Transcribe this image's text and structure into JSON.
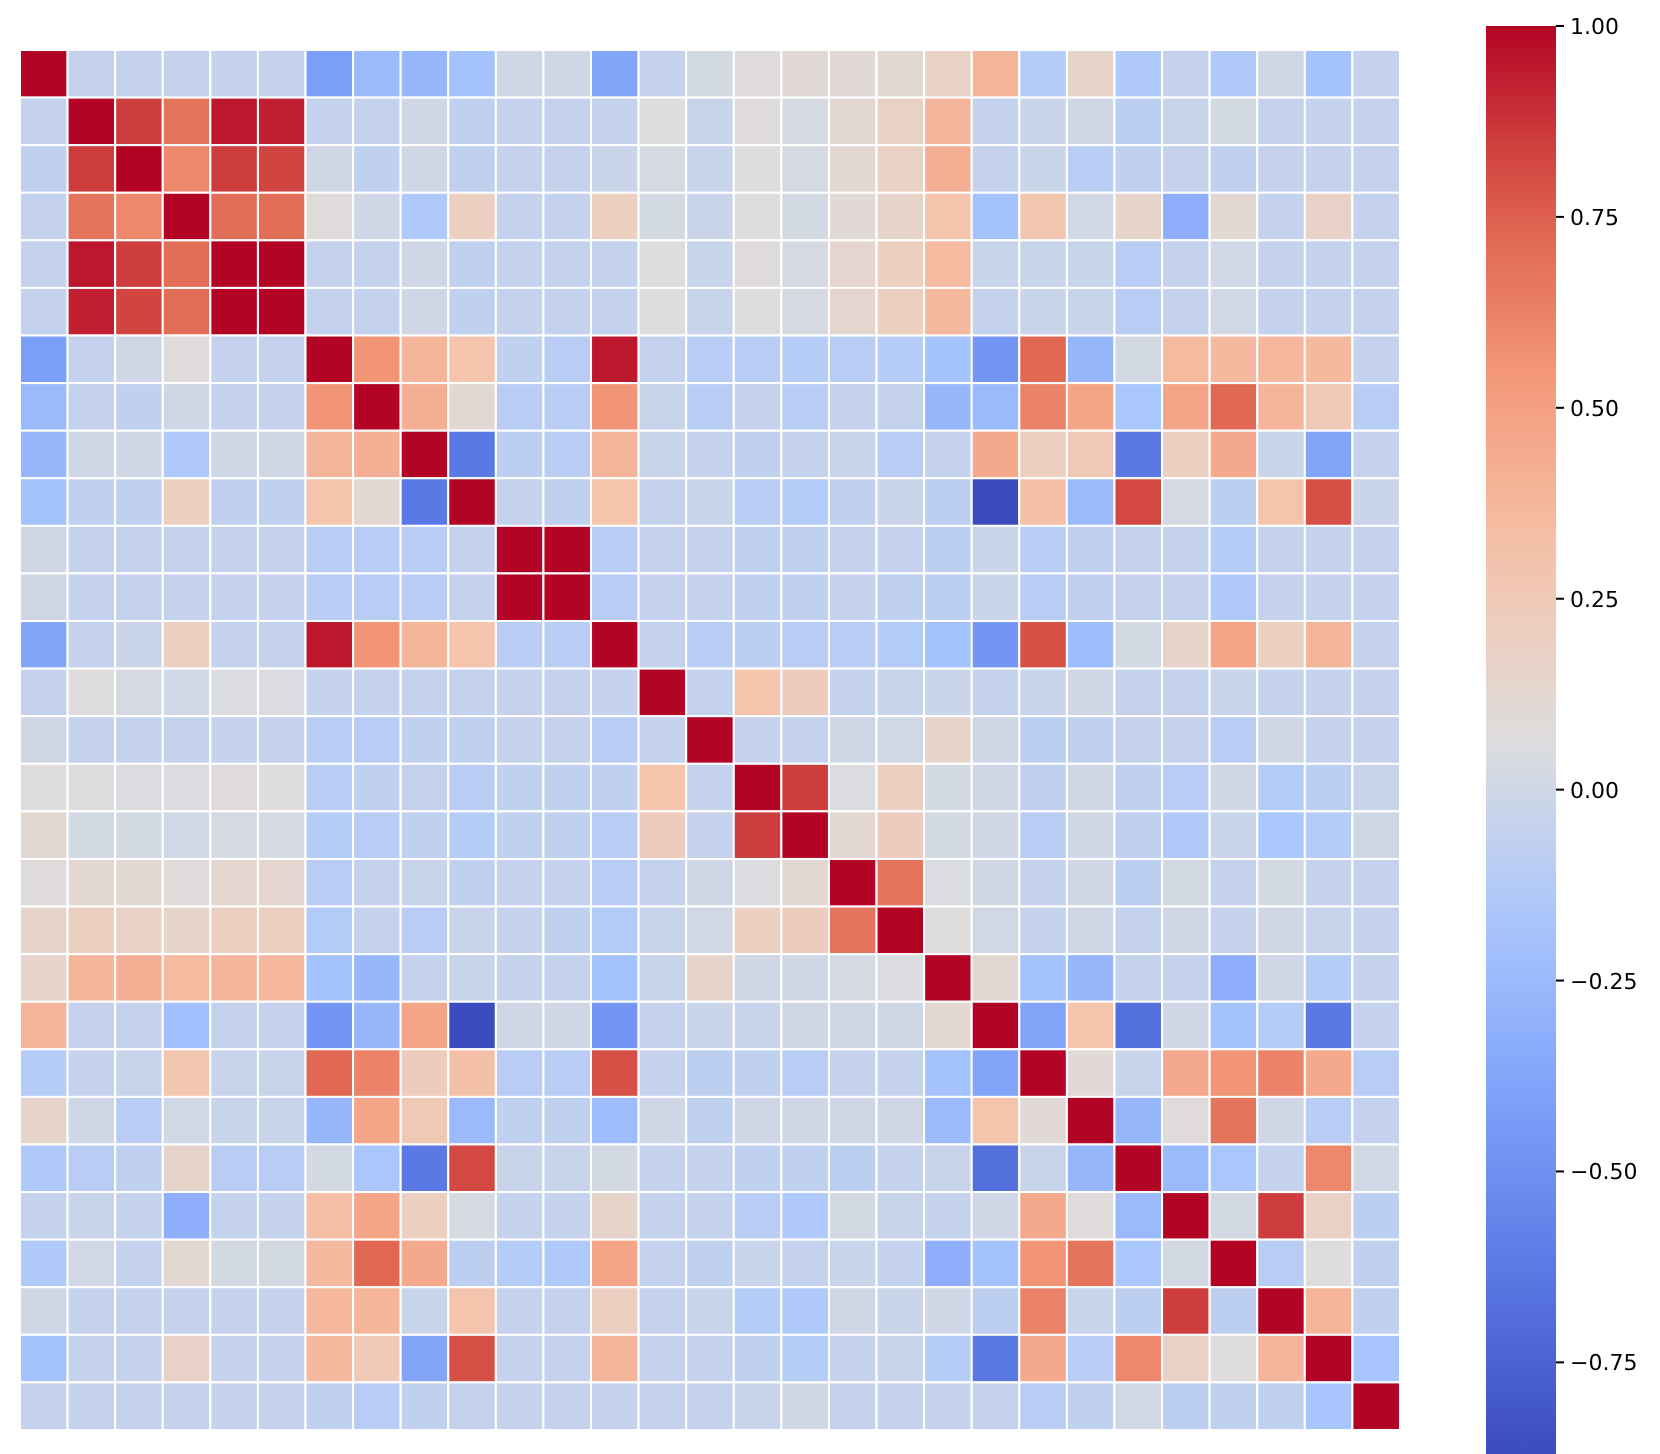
{
  "chart_data": {
    "type": "heatmap",
    "categories": [
      null,
      null,
      null,
      null,
      null,
      null,
      null,
      null,
      null,
      null,
      null,
      null,
      null,
      null,
      null,
      null,
      null,
      null,
      null,
      null,
      null,
      null,
      null,
      null,
      null,
      null,
      null,
      null,
      null
    ],
    "y_categories": [
      null,
      null,
      null,
      null,
      null,
      null,
      null,
      null,
      null,
      null,
      null,
      null,
      null,
      null,
      null,
      null,
      null,
      null,
      null,
      null,
      null,
      null,
      null,
      null,
      null,
      null,
      null,
      null,
      null
    ],
    "tick_labels": false,
    "clim": [
      -0.87,
      1
    ],
    "cticks": [
      {
        "value": -0.75,
        "label": "−0.75"
      },
      {
        "value": -0.5,
        "label": "−0.50"
      },
      {
        "value": -0.25,
        "label": "−0.25"
      },
      {
        "value": 0,
        "label": "0.00"
      },
      {
        "value": 0.25,
        "label": "0.25"
      },
      {
        "value": 0.5,
        "label": "0.50"
      },
      {
        "value": 0.75,
        "label": "0.75"
      },
      {
        "value": 1,
        "label": "1.00"
      }
    ],
    "cells": [
      [
        1,
        -0.05,
        -0.05,
        -0.05,
        -0.05,
        -0.05,
        -0.42,
        -0.25,
        -0.27,
        -0.2,
        0,
        0,
        -0.38,
        -0.05,
        0.02,
        0.08,
        0.1,
        0.1,
        0.12,
        0.18,
        0.38,
        -0.12,
        0.15,
        -0.15,
        -0.05,
        -0.15,
        0,
        -0.2,
        -0.05
      ],
      [
        -0.05,
        1,
        0.85,
        0.68,
        0.95,
        0.93,
        -0.05,
        -0.05,
        0,
        -0.07,
        -0.05,
        -0.05,
        -0.05,
        0.07,
        -0.03,
        0.08,
        0.03,
        0.12,
        0.18,
        0.38,
        -0.05,
        -0.02,
        0,
        -0.08,
        -0.03,
        0.02,
        -0.05,
        -0.05,
        -0.05
      ],
      [
        -0.07,
        0.85,
        1,
        0.6,
        0.85,
        0.83,
        0,
        -0.07,
        0,
        -0.07,
        -0.05,
        -0.05,
        -0.02,
        0.03,
        -0.03,
        0.07,
        0.03,
        0.12,
        0.18,
        0.42,
        -0.05,
        -0.02,
        -0.1,
        -0.07,
        -0.05,
        -0.07,
        -0.05,
        -0.05,
        -0.05
      ],
      [
        -0.05,
        0.68,
        0.6,
        1,
        0.7,
        0.7,
        0.08,
        0,
        -0.15,
        0.2,
        -0.05,
        -0.05,
        0.2,
        0.02,
        -0.02,
        0.07,
        0.02,
        0.1,
        0.15,
        0.3,
        -0.2,
        0.28,
        0.01,
        0.15,
        -0.32,
        0.12,
        -0.05,
        0.17,
        -0.05
      ],
      [
        -0.05,
        0.95,
        0.85,
        0.7,
        1,
        1,
        -0.05,
        -0.05,
        0,
        -0.07,
        -0.05,
        -0.05,
        -0.05,
        0.07,
        -0.03,
        0.08,
        0.03,
        0.13,
        0.2,
        0.35,
        -0.03,
        -0.03,
        -0.03,
        -0.1,
        -0.05,
        0.01,
        -0.05,
        -0.05,
        -0.05
      ],
      [
        -0.05,
        0.93,
        0.83,
        0.7,
        1,
        1,
        -0.05,
        -0.05,
        0,
        -0.07,
        -0.05,
        -0.05,
        -0.05,
        0.07,
        -0.03,
        0.07,
        0.03,
        0.13,
        0.2,
        0.36,
        -0.05,
        -0.03,
        -0.03,
        -0.1,
        -0.05,
        0.01,
        -0.05,
        -0.05,
        -0.05
      ],
      [
        -0.42,
        -0.05,
        0,
        0.08,
        -0.05,
        -0.05,
        1,
        0.55,
        0.38,
        0.3,
        -0.07,
        -0.1,
        0.95,
        -0.05,
        -0.1,
        -0.1,
        -0.12,
        -0.1,
        -0.12,
        -0.2,
        -0.47,
        0.72,
        -0.27,
        0.02,
        0.35,
        0.36,
        0.37,
        0.36,
        -0.05
      ],
      [
        -0.25,
        -0.05,
        -0.07,
        0,
        -0.05,
        -0.05,
        0.55,
        1,
        0.42,
        0.12,
        -0.1,
        -0.1,
        0.55,
        -0.03,
        -0.1,
        -0.05,
        -0.1,
        -0.05,
        -0.05,
        -0.27,
        -0.25,
        0.62,
        0.47,
        -0.17,
        0.47,
        0.72,
        0.38,
        0.25,
        -0.1
      ],
      [
        -0.27,
        0,
        0,
        -0.15,
        0,
        0,
        0.38,
        0.42,
        1,
        -0.63,
        -0.08,
        -0.1,
        0.38,
        -0.03,
        -0.05,
        -0.07,
        -0.05,
        -0.03,
        -0.1,
        -0.05,
        0.45,
        0.2,
        0.25,
        -0.63,
        0.2,
        0.45,
        -0.03,
        -0.38,
        -0.05
      ],
      [
        -0.2,
        -0.07,
        -0.07,
        0.2,
        -0.07,
        -0.07,
        0.3,
        0.12,
        -0.63,
        1,
        -0.05,
        -0.07,
        0.3,
        -0.05,
        -0.03,
        -0.1,
        -0.13,
        -0.07,
        -0.02,
        -0.08,
        -0.87,
        0.32,
        -0.25,
        0.82,
        0.03,
        -0.08,
        0.3,
        0.8,
        -0.02
      ],
      [
        0,
        -0.05,
        -0.05,
        -0.05,
        -0.05,
        -0.05,
        -0.1,
        -0.1,
        -0.1,
        -0.05,
        1,
        1,
        -0.1,
        -0.05,
        -0.05,
        -0.07,
        -0.07,
        -0.05,
        -0.05,
        -0.08,
        -0.02,
        -0.1,
        -0.07,
        -0.05,
        -0.05,
        -0.12,
        -0.05,
        -0.05,
        -0.05
      ],
      [
        0,
        -0.05,
        -0.05,
        -0.05,
        -0.05,
        -0.05,
        -0.1,
        -0.1,
        -0.1,
        -0.05,
        1,
        1,
        -0.1,
        -0.05,
        -0.05,
        -0.07,
        -0.07,
        -0.05,
        -0.07,
        -0.08,
        -0.02,
        -0.1,
        -0.07,
        -0.05,
        -0.05,
        -0.15,
        -0.05,
        -0.05,
        -0.05
      ],
      [
        -0.38,
        -0.05,
        -0.02,
        0.2,
        -0.05,
        -0.05,
        0.95,
        0.55,
        0.38,
        0.3,
        -0.1,
        -0.1,
        1,
        -0.05,
        -0.1,
        -0.08,
        -0.1,
        -0.1,
        -0.13,
        -0.2,
        -0.47,
        0.8,
        -0.23,
        0.02,
        0.15,
        0.47,
        0.2,
        0.38,
        -0.05
      ],
      [
        -0.05,
        0.07,
        0.03,
        0.01,
        0.05,
        0.05,
        -0.05,
        -0.05,
        -0.05,
        -0.05,
        -0.05,
        -0.05,
        -0.05,
        1,
        -0.05,
        0.3,
        0.22,
        -0.05,
        -0.03,
        -0.02,
        -0.05,
        -0.03,
        0,
        -0.05,
        -0.05,
        -0.02,
        -0.05,
        -0.05,
        -0.05
      ],
      [
        0,
        -0.05,
        -0.05,
        -0.05,
        -0.05,
        -0.05,
        -0.1,
        -0.1,
        -0.07,
        -0.07,
        -0.05,
        -0.05,
        -0.1,
        -0.05,
        1,
        -0.05,
        -0.05,
        0,
        0.01,
        0.15,
        0,
        -0.08,
        -0.07,
        -0.05,
        -0.05,
        -0.1,
        0,
        -0.05,
        -0.05
      ],
      [
        0.07,
        0.07,
        0.05,
        0.05,
        0.08,
        0.07,
        -0.1,
        -0.07,
        -0.05,
        -0.1,
        -0.07,
        -0.07,
        -0.07,
        0.3,
        -0.05,
        1,
        0.85,
        0.05,
        0.2,
        0.02,
        0,
        -0.07,
        0,
        -0.07,
        -0.1,
        0,
        -0.12,
        -0.08,
        -0.03
      ],
      [
        0.12,
        0.02,
        0.02,
        0.01,
        0.03,
        0.03,
        -0.12,
        -0.1,
        -0.07,
        -0.12,
        -0.07,
        -0.07,
        -0.1,
        0.22,
        -0.05,
        0.85,
        1,
        0.12,
        0.22,
        0.02,
        0,
        -0.1,
        0,
        -0.07,
        -0.15,
        -0.02,
        -0.17,
        -0.12,
        0
      ],
      [
        0.08,
        0.12,
        0.12,
        0.08,
        0.13,
        0.13,
        -0.1,
        -0.05,
        -0.03,
        -0.07,
        -0.05,
        -0.05,
        -0.1,
        -0.05,
        0,
        0.05,
        0.12,
        1,
        0.68,
        0.05,
        0,
        -0.05,
        0,
        -0.08,
        0.02,
        -0.05,
        0.02,
        -0.05,
        -0.05
      ],
      [
        0.15,
        0.2,
        0.18,
        0.15,
        0.2,
        0.2,
        -0.13,
        -0.05,
        -0.1,
        -0.03,
        -0.05,
        -0.07,
        -0.13,
        -0.03,
        0.01,
        0.2,
        0.22,
        0.68,
        1,
        0.07,
        0.01,
        -0.05,
        0,
        -0.05,
        0,
        -0.05,
        0,
        -0.03,
        -0.05
      ],
      [
        0.15,
        0.38,
        0.42,
        0.35,
        0.38,
        0.37,
        -0.2,
        -0.27,
        -0.05,
        -0.03,
        -0.05,
        -0.05,
        -0.2,
        -0.03,
        0.15,
        0,
        0,
        0.03,
        0.05,
        1,
        0.12,
        -0.2,
        -0.27,
        -0.05,
        -0.05,
        -0.32,
        0,
        -0.12,
        -0.05
      ],
      [
        0.38,
        -0.05,
        -0.05,
        -0.22,
        -0.05,
        -0.05,
        -0.47,
        -0.27,
        0.47,
        -0.87,
        0,
        0,
        -0.47,
        -0.05,
        -0.02,
        -0.03,
        0,
        0,
        0,
        0.12,
        1,
        -0.38,
        0.3,
        -0.68,
        0,
        -0.2,
        -0.12,
        -0.63,
        -0.05
      ],
      [
        -0.12,
        -0.05,
        -0.03,
        0.28,
        -0.03,
        -0.03,
        0.72,
        0.62,
        0.22,
        0.32,
        -0.1,
        -0.1,
        0.8,
        -0.05,
        -0.08,
        -0.07,
        -0.1,
        -0.05,
        -0.05,
        -0.2,
        -0.38,
        1,
        0.1,
        -0.03,
        0.45,
        0.55,
        0.62,
        0.45,
        -0.1
      ],
      [
        0.15,
        0,
        -0.1,
        0.01,
        -0.03,
        -0.03,
        -0.27,
        0.47,
        0.25,
        -0.25,
        -0.07,
        -0.07,
        -0.23,
        0,
        -0.07,
        0,
        0,
        0,
        0,
        -0.25,
        0.3,
        0.1,
        1,
        -0.27,
        0.08,
        0.68,
        0,
        -0.1,
        -0.05
      ],
      [
        -0.15,
        -0.1,
        -0.07,
        0.15,
        -0.1,
        -0.1,
        0.02,
        -0.17,
        -0.63,
        0.82,
        -0.03,
        -0.03,
        0.02,
        -0.05,
        -0.05,
        -0.07,
        -0.07,
        -0.08,
        -0.05,
        -0.03,
        -0.68,
        -0.03,
        -0.27,
        1,
        -0.25,
        -0.17,
        -0.05,
        0.6,
        0.01
      ],
      [
        -0.05,
        -0.03,
        -0.05,
        -0.32,
        -0.05,
        -0.05,
        0.33,
        0.47,
        0.2,
        0.03,
        -0.05,
        -0.05,
        0.15,
        -0.05,
        -0.05,
        -0.1,
        -0.15,
        0.02,
        -0.03,
        -0.05,
        0,
        0.45,
        0.08,
        -0.25,
        1,
        0.02,
        0.85,
        0.18,
        -0.08
      ],
      [
        -0.15,
        0.01,
        -0.05,
        0.12,
        0.02,
        0.02,
        0.36,
        0.72,
        0.45,
        -0.08,
        -0.12,
        -0.15,
        0.47,
        -0.05,
        -0.07,
        -0.03,
        -0.05,
        -0.03,
        -0.05,
        -0.32,
        -0.2,
        0.55,
        0.68,
        -0.17,
        0.02,
        1,
        -0.1,
        0.07,
        -0.07
      ],
      [
        0,
        -0.05,
        -0.05,
        -0.05,
        -0.05,
        -0.05,
        0.37,
        0.38,
        -0.03,
        0.3,
        -0.05,
        -0.05,
        0.2,
        -0.05,
        -0.03,
        -0.12,
        -0.15,
        0,
        -0.02,
        0,
        -0.08,
        0.62,
        -0.03,
        -0.08,
        0.85,
        -0.08,
        1,
        0.38,
        -0.07
      ],
      [
        -0.2,
        -0.05,
        -0.05,
        0.17,
        -0.05,
        -0.05,
        0.36,
        0.25,
        -0.38,
        0.8,
        -0.05,
        -0.05,
        0.38,
        -0.05,
        -0.05,
        -0.07,
        -0.12,
        -0.05,
        -0.03,
        -0.12,
        -0.63,
        0.45,
        -0.1,
        0.6,
        0.18,
        0.07,
        0.38,
        1,
        -0.18
      ],
      [
        -0.05,
        -0.05,
        -0.05,
        -0.05,
        -0.05,
        -0.05,
        -0.07,
        -0.1,
        -0.07,
        -0.05,
        -0.05,
        -0.05,
        -0.05,
        -0.05,
        -0.05,
        -0.03,
        0,
        -0.05,
        -0.05,
        -0.05,
        -0.05,
        -0.1,
        -0.07,
        0.01,
        -0.08,
        -0.07,
        -0.07,
        -0.18,
        1
      ]
    ]
  }
}
